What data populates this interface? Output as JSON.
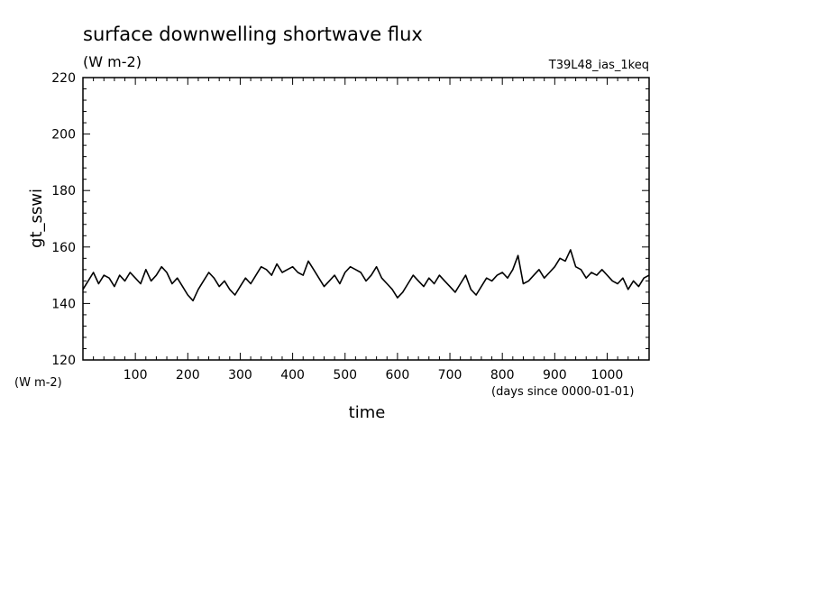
{
  "chart_data": {
    "type": "line",
    "title": "surface downwelling shortwave flux",
    "units": "(W m-2)",
    "run_label": "T39L48_ias_1keq",
    "ylabel": "gt_sswi",
    "yunits": "(W m-2)",
    "xlabel": "time",
    "xunits": "(days since 0000-01-01)",
    "xlim": [
      0,
      1080
    ],
    "ylim": [
      120,
      220
    ],
    "xticks": [
      100,
      200,
      300,
      400,
      500,
      600,
      700,
      800,
      900,
      1000
    ],
    "yticks": [
      120,
      140,
      160,
      180,
      200,
      220
    ],
    "line_color": "#000000",
    "series": [
      {
        "x": [
          0,
          10,
          20,
          30,
          40,
          50,
          60,
          70,
          80,
          90,
          100,
          110,
          120,
          130,
          140,
          150,
          160,
          170,
          180,
          190,
          200,
          210,
          220,
          230,
          240,
          250,
          260,
          270,
          280,
          290,
          300,
          310,
          320,
          330,
          340,
          350,
          360,
          370,
          380,
          390,
          400,
          410,
          420,
          430,
          440,
          450,
          460,
          470,
          480,
          490,
          500,
          510,
          520,
          530,
          540,
          550,
          560,
          570,
          580,
          590,
          600,
          610,
          620,
          630,
          640,
          650,
          660,
          670,
          680,
          690,
          700,
          710,
          720,
          730,
          740,
          750,
          760,
          770,
          780,
          790,
          800,
          810,
          820,
          830,
          840,
          850,
          860,
          870,
          880,
          890,
          900,
          910,
          920,
          930,
          940,
          950,
          960,
          970,
          980,
          990,
          1000,
          1010,
          1020,
          1030,
          1040,
          1050,
          1060,
          1070,
          1080
        ],
        "values": [
          145,
          148,
          151,
          147,
          150,
          149,
          146,
          150,
          148,
          151,
          149,
          147,
          152,
          148,
          150,
          153,
          151,
          147,
          149,
          146,
          143,
          141,
          145,
          148,
          151,
          149,
          146,
          148,
          145,
          143,
          146,
          149,
          147,
          150,
          153,
          152,
          150,
          154,
          151,
          152,
          153,
          151,
          150,
          155,
          152,
          149,
          146,
          148,
          150,
          147,
          151,
          153,
          152,
          151,
          148,
          150,
          153,
          149,
          147,
          145,
          142,
          144,
          147,
          150,
          148,
          146,
          149,
          147,
          150,
          148,
          146,
          144,
          147,
          150,
          145,
          143,
          146,
          149,
          148,
          150,
          151,
          149,
          152,
          157,
          147,
          148,
          150,
          152,
          149,
          151,
          153,
          156,
          155,
          159,
          153,
          152,
          149,
          151,
          150,
          152,
          150,
          148,
          147,
          149,
          145,
          148,
          146,
          149,
          150
        ]
      }
    ]
  }
}
